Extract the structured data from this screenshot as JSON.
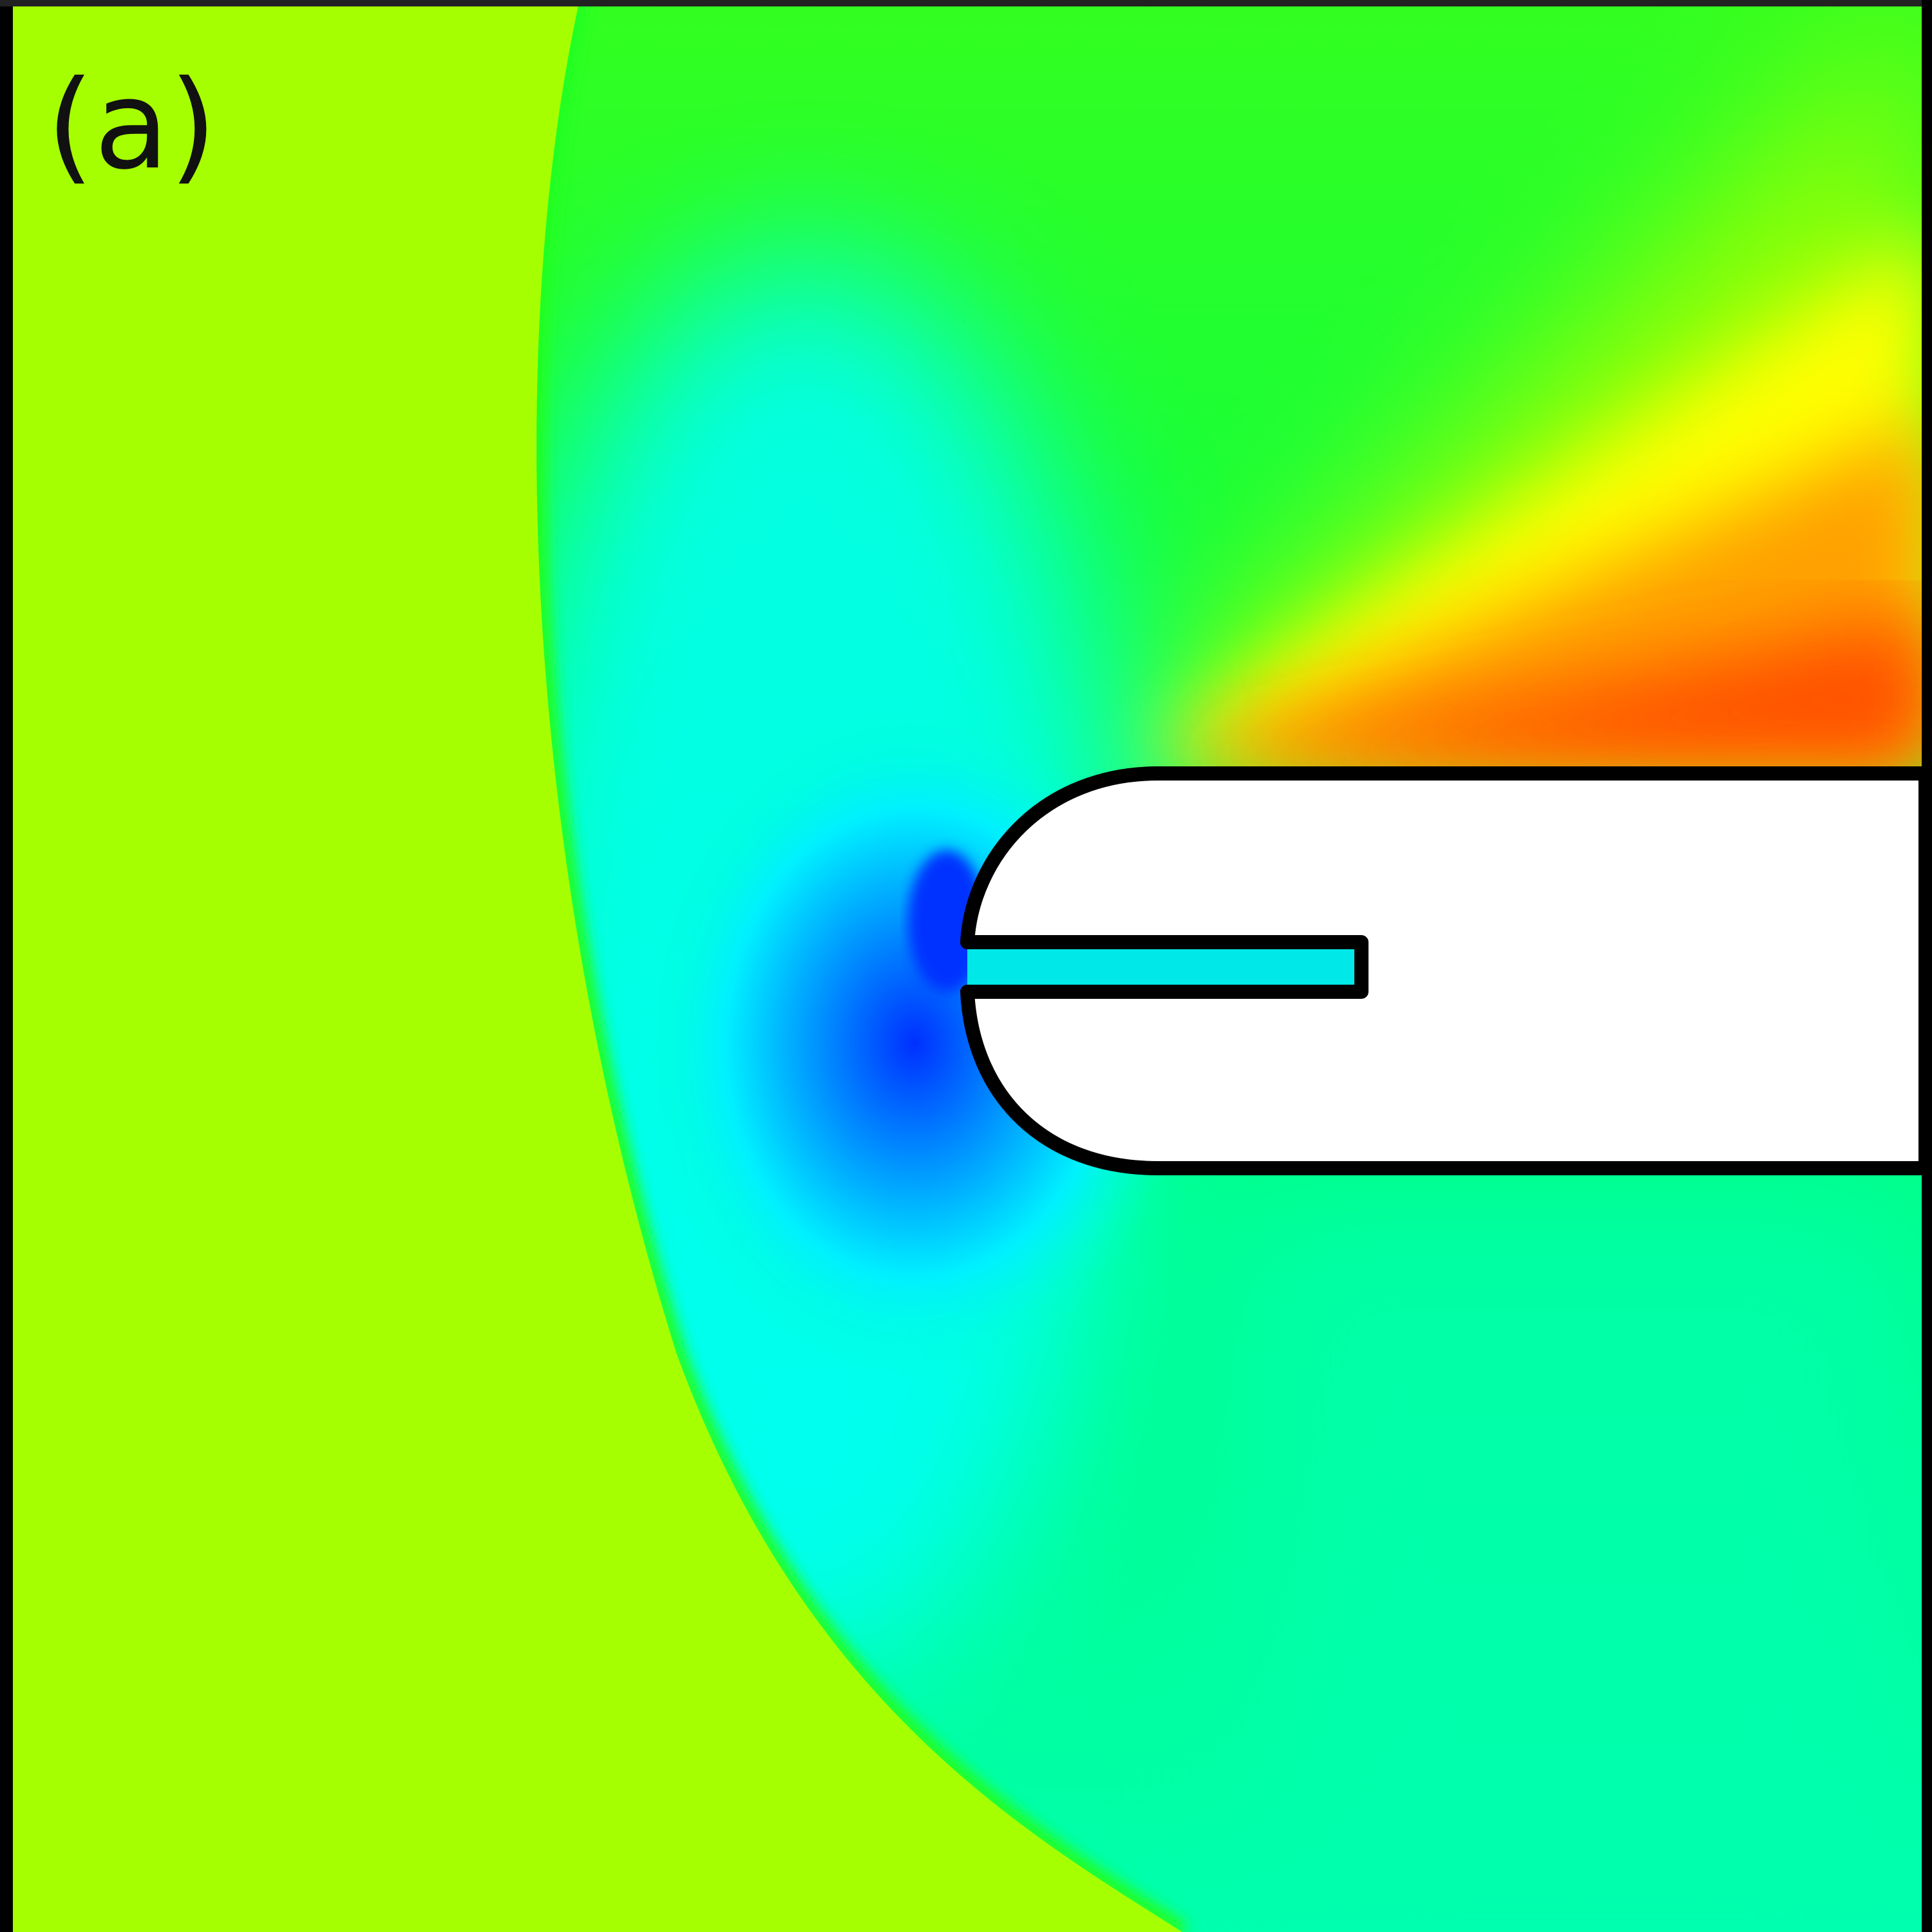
{
  "panel": {
    "label": "(a)"
  },
  "colors": {
    "freestream": "#a6ff00",
    "green": "#00ff22",
    "cyan": "#00ffff",
    "blue": "#0040ff",
    "aqua_green": "#00ffae",
    "yellow": "#ffff00",
    "orange": "#ffa000",
    "red_orange": "#ff5000",
    "body_fill": "#ffffff",
    "body_outline": "#000000"
  }
}
